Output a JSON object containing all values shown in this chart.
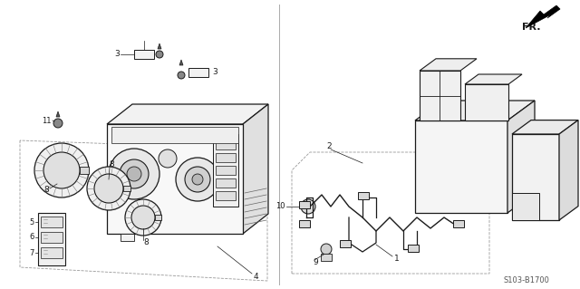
{
  "background_color": "#ffffff",
  "line_color": "#1a1a1a",
  "gray_color": "#888888",
  "light_gray": "#cccccc",
  "fill_light": "#f2f2f2",
  "fill_mid": "#e0e0e0",
  "diagram_code": "S103-B1700",
  "figsize": [
    6.4,
    3.19
  ],
  "dpi": 100
}
